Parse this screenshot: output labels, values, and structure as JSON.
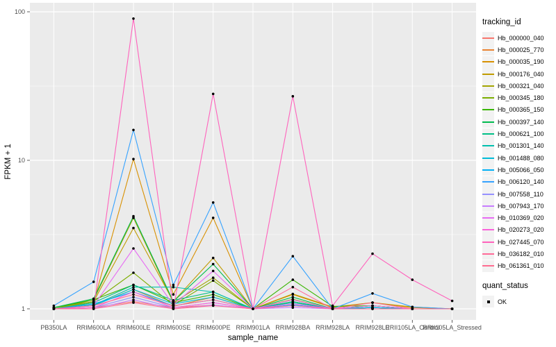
{
  "figure": {
    "y_axis_title": "FPKM + 1",
    "x_axis_title": "sample_name",
    "y_ticks": [
      {
        "label": "100",
        "value": 100
      },
      {
        "label": "10",
        "value": 10
      },
      {
        "label": "1",
        "value": 1
      }
    ],
    "panel_bg": "#ebebeb",
    "grid_color": "#ffffff",
    "tick_text_color": "#4d4d4d",
    "point_color": "#000000"
  },
  "legend": {
    "tracking_title": "tracking_id",
    "quant_title": "quant_status",
    "quant_items": [
      {
        "label": "OK",
        "marker_color": "#000000"
      }
    ],
    "key_bg": "#f2f2f2"
  },
  "chart_data": {
    "type": "line",
    "x_type": "categorical",
    "y_scale": "log10",
    "ylim": [
      1,
      100
    ],
    "title": "",
    "xlabel": "sample_name",
    "ylabel": "FPKM + 1",
    "legend_position": "right",
    "grid": "on",
    "minor_gridline_values": [
      3.1623,
      31.623
    ],
    "point_marker": "black dot on every observation (quant_status = OK)",
    "categories": [
      "PB350LA",
      "RRIM600LA",
      "RRIM600LE",
      "RRIM600SE",
      "RRIM600PE",
      "RRIM901LA",
      "RRIM928BA",
      "RRIM928LA",
      "RRIM928LE",
      "RRII105LA_Control",
      "RRII105LA_Stressed"
    ],
    "series": [
      {
        "name": "Hb_000000_040",
        "color": "#F8766D",
        "values": [
          1,
          1.02,
          1.12,
          1.02,
          1.06,
          1,
          1.05,
          1,
          1.02,
          1,
          1
        ]
      },
      {
        "name": "Hb_000025_770",
        "color": "#EA8331",
        "values": [
          1,
          1.06,
          1.35,
          1.04,
          1.2,
          1,
          1.12,
          1,
          1.05,
          1,
          1
        ]
      },
      {
        "name": "Hb_000035_190",
        "color": "#D89000",
        "values": [
          1,
          1.1,
          10.2,
          1.25,
          4.1,
          1,
          1.25,
          1.02,
          1.1,
          1.02,
          1
        ]
      },
      {
        "name": "Hb_000176_040",
        "color": "#C09B00",
        "values": [
          1,
          1.12,
          3.5,
          1.12,
          2.2,
          1,
          1.26,
          1.03,
          1.1,
          1.03,
          1
        ]
      },
      {
        "name": "Hb_000321_040",
        "color": "#A3A500",
        "values": [
          1,
          1.15,
          4.1,
          1.1,
          1.62,
          1,
          1.16,
          1,
          1.05,
          1,
          1
        ]
      },
      {
        "name": "Hb_000345_180",
        "color": "#7CAE00",
        "values": [
          1.02,
          1.12,
          1.75,
          1.06,
          1.55,
          1,
          1.12,
          1,
          1.02,
          1,
          1
        ]
      },
      {
        "name": "Hb_000365_150",
        "color": "#39B600",
        "values": [
          1.02,
          1.15,
          1.45,
          1.1,
          1.25,
          1,
          1.57,
          1.04,
          1.05,
          1,
          1
        ]
      },
      {
        "name": "Hb_000397_140",
        "color": "#00BB4E",
        "values": [
          1.02,
          1.17,
          4.2,
          1.12,
          2.0,
          1,
          1.2,
          1,
          1.05,
          1,
          1
        ]
      },
      {
        "name": "Hb_000621_100",
        "color": "#00C087",
        "values": [
          1,
          1.1,
          1.45,
          1.14,
          1.3,
          1,
          1.12,
          1,
          1.02,
          1,
          1
        ]
      },
      {
        "name": "Hb_001301_140",
        "color": "#00C0AF",
        "values": [
          1,
          1.06,
          1.4,
          1.4,
          1.3,
          1,
          1.1,
          1,
          1.02,
          1,
          1
        ]
      },
      {
        "name": "Hb_001488_080",
        "color": "#00BCD8",
        "values": [
          1,
          1.05,
          1.35,
          1.08,
          1.2,
          1,
          1.06,
          1,
          1,
          1,
          1
        ]
      },
      {
        "name": "Hb_005066_050",
        "color": "#00B0F6",
        "values": [
          1,
          1.08,
          1.3,
          1.05,
          1.15,
          1,
          1.06,
          1,
          1.02,
          1,
          1
        ]
      },
      {
        "name": "Hb_006120_140",
        "color": "#35A2FF",
        "values": [
          1.05,
          1.52,
          16,
          1.45,
          5.2,
          1,
          2.26,
          1,
          1.27,
          1.03,
          1
        ]
      },
      {
        "name": "Hb_007558_110",
        "color": "#9590FF",
        "values": [
          1,
          1.02,
          1.2,
          1.02,
          1.1,
          1,
          1.05,
          1,
          1,
          1,
          1
        ]
      },
      {
        "name": "Hb_007943_170",
        "color": "#C77CFF",
        "values": [
          1,
          1,
          1.15,
          1,
          1.06,
          1,
          1.02,
          1,
          1,
          1,
          1
        ]
      },
      {
        "name": "Hb_010369_020",
        "color": "#E76BF3",
        "values": [
          1,
          1.05,
          2.55,
          1.06,
          1.8,
          1,
          1.15,
          1,
          1.05,
          1,
          1
        ]
      },
      {
        "name": "Hb_020273_020",
        "color": "#FA62DB",
        "values": [
          1,
          1.02,
          1.3,
          1.02,
          1.1,
          1,
          1.08,
          1,
          1,
          1,
          1
        ]
      },
      {
        "name": "Hb_027445_070",
        "color": "#FF62BC",
        "values": [
          1,
          1,
          90,
          1,
          28,
          1,
          27,
          1.05,
          2.35,
          1.57,
          1.13
        ]
      },
      {
        "name": "Hb_036182_010",
        "color": "#FF6A98",
        "values": [
          1,
          1.05,
          1.25,
          1.05,
          1.15,
          1,
          1.4,
          1,
          1.1,
          1,
          1
        ]
      },
      {
        "name": "Hb_061361_010",
        "color": "#FF6C91",
        "values": [
          1,
          1,
          1.1,
          1,
          1.05,
          1,
          1.05,
          1,
          1,
          1,
          1
        ]
      }
    ]
  }
}
